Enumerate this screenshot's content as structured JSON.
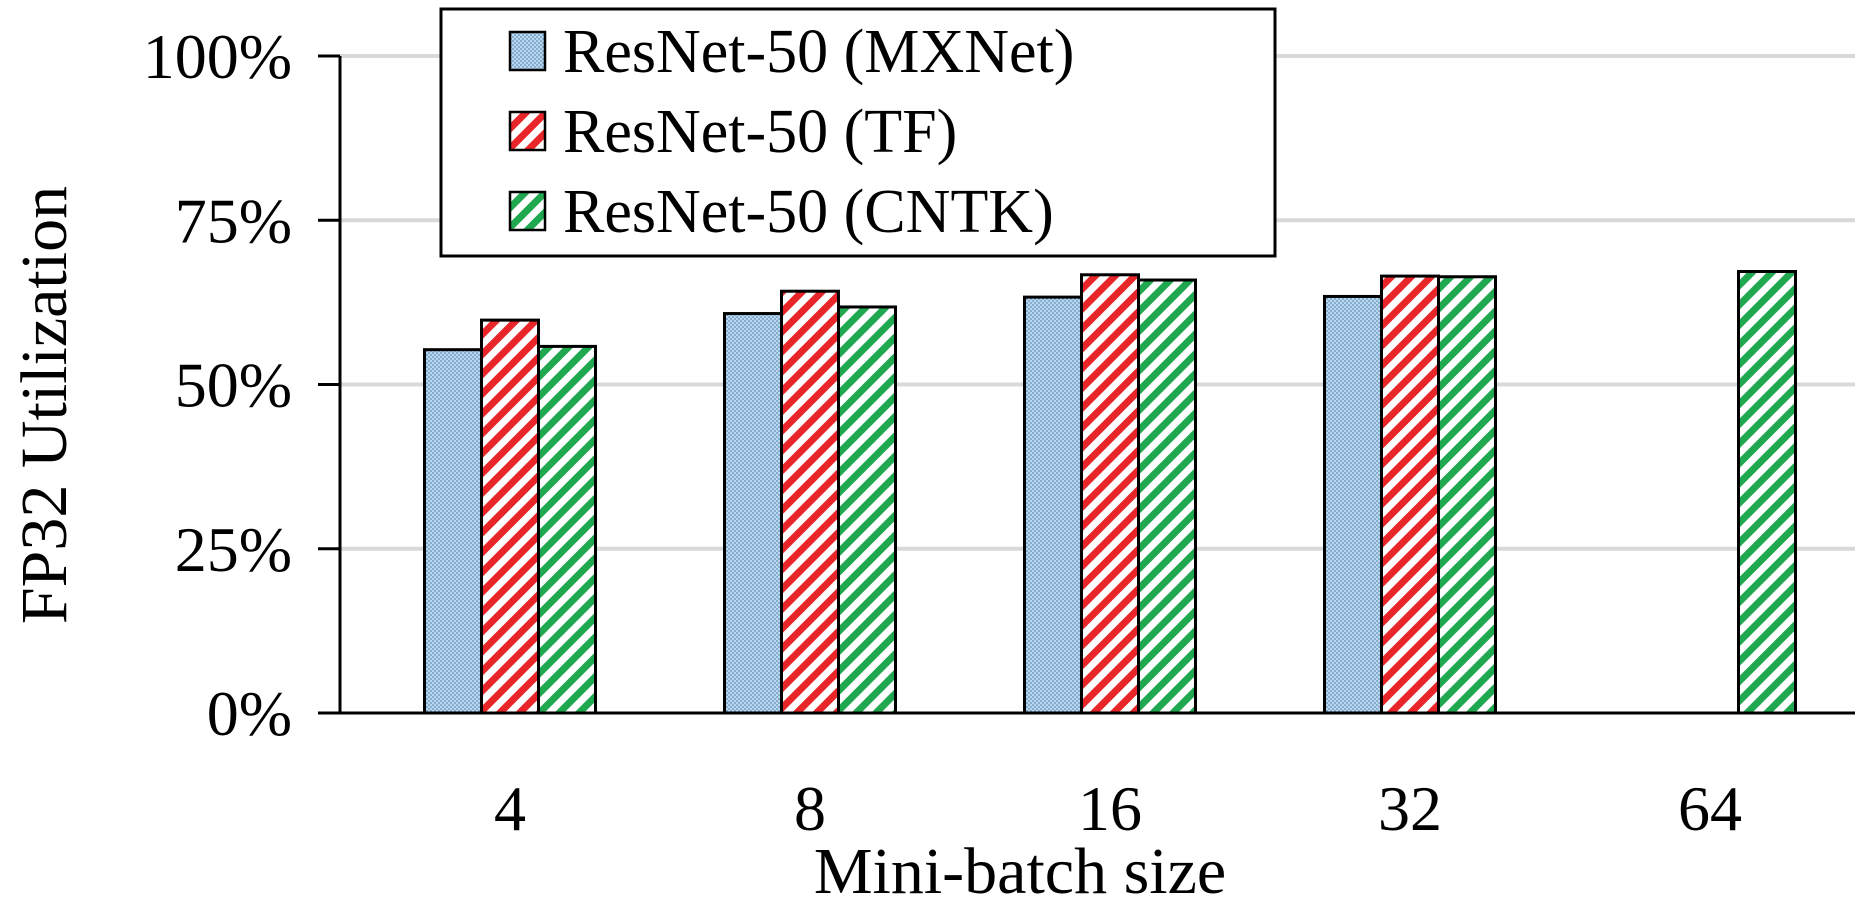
{
  "chart_data": {
    "type": "bar",
    "title": "",
    "xlabel": "Mini-batch size",
    "ylabel": "FP32 Utilization",
    "categories": [
      "4",
      "8",
      "16",
      "32",
      "64"
    ],
    "ylim": [
      0,
      100
    ],
    "yticks": [
      0,
      25,
      50,
      75,
      100
    ],
    "ytick_labels": [
      "0%",
      "25%",
      "50%",
      "75%",
      "100%"
    ],
    "grid": true,
    "legend_position": "top-left",
    "series": [
      {
        "name": "ResNet-50 (MXNet)",
        "pattern": "dots",
        "color": "#bcd7ec",
        "values": [
          55.3,
          60.8,
          63.3,
          63.4,
          null
        ]
      },
      {
        "name": "ResNet-50 (TF)",
        "pattern": "diagonal-stripes",
        "color": "#e8262a",
        "values": [
          59.8,
          64.2,
          66.7,
          66.5,
          null
        ]
      },
      {
        "name": "ResNet-50 (CNTK)",
        "pattern": "diagonal-stripes",
        "color": "#1fa84f",
        "values": [
          55.8,
          61.8,
          65.9,
          66.4,
          67.2
        ]
      }
    ]
  }
}
